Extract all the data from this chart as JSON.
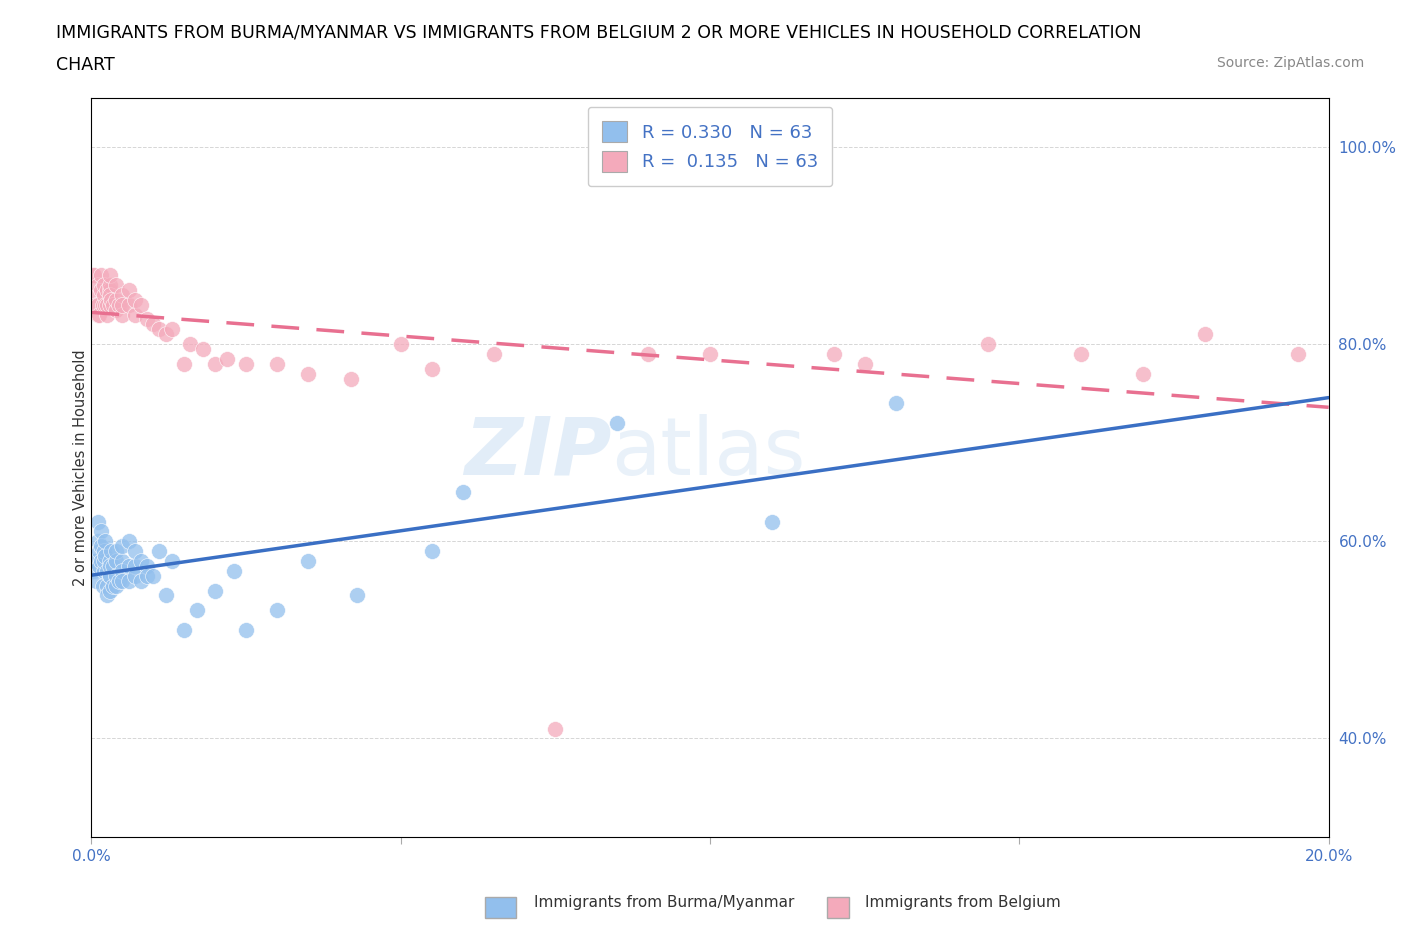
{
  "title_line1": "IMMIGRANTS FROM BURMA/MYANMAR VS IMMIGRANTS FROM BELGIUM 2 OR MORE VEHICLES IN HOUSEHOLD CORRELATION",
  "title_line2": "CHART",
  "source": "Source: ZipAtlas.com",
  "ylabel": "2 or more Vehicles in Household",
  "watermark": "ZIPAtlas",
  "legend_blue_R": "0.330",
  "legend_blue_N": "63",
  "legend_pink_R": "0.135",
  "legend_pink_N": "63",
  "legend_label_blue": "Immigrants from Burma/Myanmar",
  "legend_label_pink": "Immigrants from Belgium",
  "blue_color": "#92BFED",
  "pink_color": "#F4AABB",
  "trendline_blue": "#3A6FC4",
  "trendline_pink": "#E87090",
  "blue_scatter_x": [
    0.0005,
    0.0005,
    0.0008,
    0.001,
    0.001,
    0.0012,
    0.0013,
    0.0015,
    0.0015,
    0.0015,
    0.0018,
    0.002,
    0.002,
    0.002,
    0.0022,
    0.0022,
    0.0025,
    0.0025,
    0.0025,
    0.003,
    0.003,
    0.003,
    0.003,
    0.003,
    0.0032,
    0.0035,
    0.0035,
    0.004,
    0.004,
    0.004,
    0.004,
    0.0045,
    0.005,
    0.005,
    0.005,
    0.005,
    0.006,
    0.006,
    0.006,
    0.007,
    0.007,
    0.007,
    0.008,
    0.008,
    0.009,
    0.009,
    0.01,
    0.011,
    0.012,
    0.013,
    0.015,
    0.017,
    0.02,
    0.023,
    0.025,
    0.03,
    0.035,
    0.043,
    0.055,
    0.06,
    0.085,
    0.11,
    0.13
  ],
  "blue_scatter_y": [
    0.58,
    0.57,
    0.56,
    0.62,
    0.6,
    0.59,
    0.575,
    0.58,
    0.61,
    0.595,
    0.555,
    0.57,
    0.58,
    0.59,
    0.585,
    0.6,
    0.57,
    0.555,
    0.545,
    0.58,
    0.565,
    0.55,
    0.565,
    0.575,
    0.59,
    0.575,
    0.555,
    0.58,
    0.565,
    0.555,
    0.59,
    0.56,
    0.58,
    0.57,
    0.595,
    0.56,
    0.6,
    0.575,
    0.56,
    0.575,
    0.59,
    0.565,
    0.58,
    0.56,
    0.575,
    0.565,
    0.565,
    0.59,
    0.545,
    0.58,
    0.51,
    0.53,
    0.55,
    0.57,
    0.51,
    0.53,
    0.58,
    0.545,
    0.59,
    0.65,
    0.72,
    0.62,
    0.74
  ],
  "pink_scatter_x": [
    0.0003,
    0.0005,
    0.0005,
    0.0008,
    0.001,
    0.001,
    0.001,
    0.0012,
    0.0015,
    0.0015,
    0.0018,
    0.002,
    0.002,
    0.0022,
    0.0025,
    0.0025,
    0.0025,
    0.003,
    0.003,
    0.003,
    0.003,
    0.003,
    0.0032,
    0.0035,
    0.004,
    0.004,
    0.004,
    0.0045,
    0.005,
    0.005,
    0.005,
    0.006,
    0.006,
    0.007,
    0.007,
    0.008,
    0.009,
    0.01,
    0.011,
    0.012,
    0.013,
    0.015,
    0.016,
    0.018,
    0.02,
    0.022,
    0.025,
    0.03,
    0.035,
    0.042,
    0.05,
    0.055,
    0.065,
    0.075,
    0.09,
    0.1,
    0.12,
    0.125,
    0.145,
    0.16,
    0.17,
    0.18,
    0.195
  ],
  "pink_scatter_y": [
    0.87,
    0.85,
    0.87,
    0.84,
    0.83,
    0.84,
    0.86,
    0.83,
    0.855,
    0.87,
    0.84,
    0.85,
    0.86,
    0.84,
    0.83,
    0.855,
    0.84,
    0.855,
    0.84,
    0.86,
    0.85,
    0.87,
    0.845,
    0.84,
    0.835,
    0.845,
    0.86,
    0.84,
    0.83,
    0.85,
    0.84,
    0.84,
    0.855,
    0.83,
    0.845,
    0.84,
    0.825,
    0.82,
    0.815,
    0.81,
    0.815,
    0.78,
    0.8,
    0.795,
    0.78,
    0.785,
    0.78,
    0.78,
    0.77,
    0.765,
    0.8,
    0.775,
    0.79,
    0.41,
    0.79,
    0.79,
    0.79,
    0.78,
    0.8,
    0.79,
    0.77,
    0.81,
    0.79
  ],
  "xlim": [
    0.0,
    0.2
  ],
  "ylim": [
    0.3,
    1.05
  ],
  "yticks": [
    0.4,
    0.6,
    0.8,
    1.0
  ],
  "xtick_positions": [
    0.0,
    0.05,
    0.1,
    0.15,
    0.2
  ],
  "xtick_labels_show": [
    "0.0%",
    "",
    "",
    "",
    "20.0%"
  ],
  "figsize": [
    14.06,
    9.3
  ],
  "dpi": 100
}
